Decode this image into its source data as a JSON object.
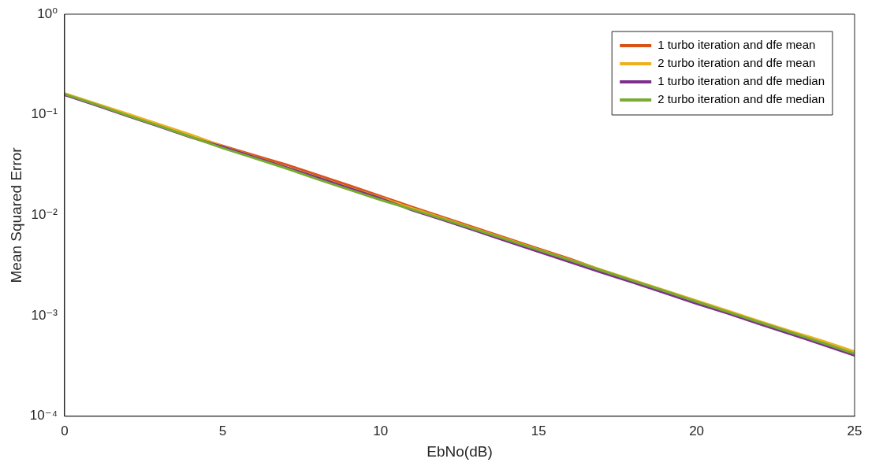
{
  "chart_data": {
    "type": "line",
    "xlabel": "EbNo(dB)",
    "ylabel": "Mean Squared Error",
    "log": "y",
    "grid": false,
    "legend": "top right",
    "marker": "none",
    "line_style": "solid",
    "x": [
      0,
      1,
      2,
      3,
      4,
      5,
      6,
      7,
      8,
      9,
      10,
      11,
      12,
      13,
      14,
      15,
      16,
      17,
      18,
      19,
      20,
      21,
      22,
      23,
      24,
      25
    ],
    "xlim": [
      0,
      25
    ],
    "xticks": [
      0,
      5,
      10,
      15,
      20,
      25
    ],
    "ylim": [
      0.0001,
      1
    ],
    "yticks": [
      {
        "value": 0.0001,
        "label": "10⁻⁴"
      },
      {
        "value": 0.001,
        "label": "10⁻³"
      },
      {
        "value": 0.01,
        "label": "10⁻²"
      },
      {
        "value": 0.1,
        "label": "10⁻¹"
      },
      {
        "value": 1,
        "label": "10⁰"
      }
    ],
    "series": [
      {
        "name": "1 turbo iteration and dfe mean",
        "color": "#d95319",
        "values": [
          null,
          null,
          null,
          0.078,
          0.0615,
          0.049,
          0.0395,
          0.032,
          0.0252,
          0.0198,
          0.0155,
          0.0121,
          0.0095,
          0.0075,
          0.0059,
          0.00465,
          0.00367,
          0.00283,
          0.00224,
          null,
          null,
          null,
          null,
          null,
          null,
          null
        ]
      },
      {
        "name": "2 turbo iteration and dfe mean",
        "color": "#edb120",
        "values": [
          0.163,
          0.129,
          0.102,
          0.0803,
          0.0633,
          0.0485,
          0.0383,
          0.0302,
          0.0239,
          0.0188,
          0.0149,
          0.0117,
          0.00925,
          0.0073,
          0.00577,
          0.00455,
          0.00359,
          0.00285,
          0.00226,
          0.00179,
          0.00141,
          0.00112,
          0.00088,
          0.0007,
          0.00056,
          0.00044
        ]
      },
      {
        "name": "1 turbo iteration and dfe median",
        "color": "#7e2f8e",
        "values": [
          0.157,
          0.124,
          0.0965,
          0.0762,
          0.0593,
          0.048,
          0.038,
          0.03,
          0.0237,
          0.0186,
          0.0147,
          0.0112,
          0.0089,
          0.007,
          0.0055,
          0.00432,
          0.00341,
          0.00269,
          0.00213,
          0.00168,
          0.00132,
          0.00105,
          0.000826,
          0.000653,
          0.000514,
          0.000403
        ]
      },
      {
        "name": "2 turbo iteration and dfe median",
        "color": "#77ac30",
        "values": [
          0.16,
          0.126,
          0.098,
          0.077,
          0.06,
          0.0465,
          0.037,
          0.0293,
          0.0228,
          0.018,
          0.0142,
          0.0114,
          0.0091,
          0.0072,
          0.0057,
          0.0045,
          0.00356,
          0.00281,
          0.00222,
          0.00176,
          0.00138,
          0.00109,
          0.00086,
          0.00068,
          0.000535,
          0.00042
        ]
      }
    ]
  }
}
